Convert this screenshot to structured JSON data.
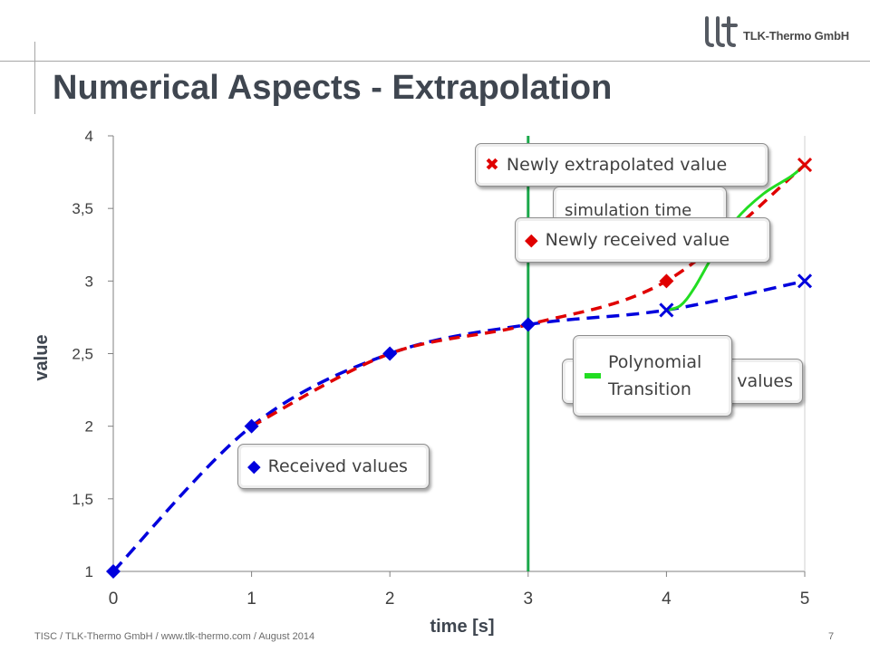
{
  "header": {
    "title": "Numerical Aspects - Extrapolation",
    "logo_text": "TLK-Thermo GmbH"
  },
  "chart_data": {
    "type": "line",
    "xlabel": "time [s]",
    "ylabel": "value",
    "xlim": [
      0,
      5
    ],
    "ylim": [
      1,
      4
    ],
    "x_ticks": [
      "0",
      "1",
      "2",
      "3",
      "4",
      "5"
    ],
    "y_ticks": [
      "1",
      "1,5",
      "2",
      "2,5",
      "3",
      "3,5",
      "4"
    ],
    "current_simulation_time": 3,
    "series": [
      {
        "name": "Received values",
        "color": "#0000dd",
        "style": "dashed",
        "marker": "diamond",
        "x": [
          0,
          1,
          2,
          3
        ],
        "y": [
          1.0,
          2.0,
          2.5,
          2.7
        ]
      },
      {
        "name": "Newly received value",
        "color": "#e00000",
        "marker": "diamond",
        "x": [
          4
        ],
        "y": [
          3.0
        ]
      },
      {
        "name": "Extrapolated values",
        "color": "#0000dd",
        "marker": "x",
        "x": [
          4,
          5
        ],
        "y": [
          2.8,
          3.0
        ]
      },
      {
        "name": "Newly extrapolated value",
        "color": "#e00000",
        "marker": "x",
        "x": [
          5
        ],
        "y": [
          3.8
        ]
      },
      {
        "name": "Polynomial Transition",
        "color": "#22dd22",
        "x": [
          4.0,
          4.1,
          4.2,
          4.35,
          4.5,
          4.7,
          4.9,
          5.0
        ],
        "y": [
          2.8,
          2.83,
          2.95,
          3.2,
          3.42,
          3.6,
          3.72,
          3.8
        ]
      }
    ],
    "callouts": {
      "received": "Received values",
      "newly_received": "Newly received value",
      "newly_extrapolated": "Newly extrapolated value",
      "simulation_time": "simulation time",
      "extrapolated_partial": "values",
      "polynomial_line1": "Polynomial",
      "polynomial_line2": "Transition"
    }
  },
  "footer": {
    "text": "TISC / TLK-Thermo  GmbH / www.tlk-thermo.com / August 2014",
    "page": "7"
  }
}
